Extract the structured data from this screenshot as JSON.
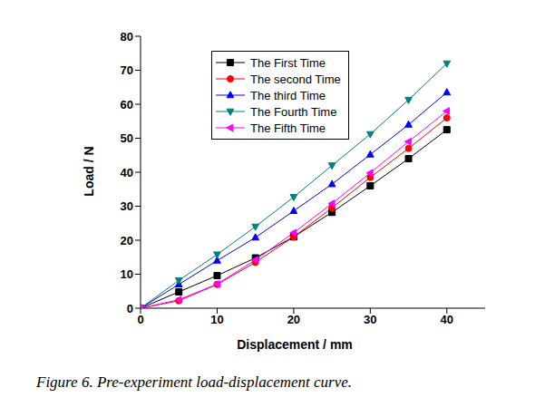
{
  "chart_data": {
    "type": "line",
    "caption": "Figure 6. Pre-experiment load-displacement curve.",
    "x_label": "Displacement / mm",
    "y_label": "Load / N",
    "x": [
      0,
      5,
      10,
      15,
      20,
      25,
      30,
      35,
      40
    ],
    "xlim": [
      0,
      45
    ],
    "xticks": [
      0,
      10,
      20,
      30,
      40
    ],
    "ylim": [
      0,
      80
    ],
    "yticks": [
      0,
      10,
      20,
      30,
      40,
      50,
      60,
      70,
      80
    ],
    "grid": false,
    "legend": "upper left",
    "series": [
      {
        "name": "The First Time",
        "color": "#000000",
        "marker": "square",
        "values": [
          0,
          4.8,
          9.6,
          14.8,
          21,
          28.2,
          36,
          44,
          52.5
        ]
      },
      {
        "name": "The second Time",
        "color": "#ff0000",
        "marker": "circle",
        "values": [
          0,
          2.2,
          7,
          13.5,
          21,
          29.5,
          38.5,
          47,
          56
        ]
      },
      {
        "name": "The third Time",
        "color": "#0000ff",
        "marker": "triangle-up",
        "values": [
          0,
          7,
          14,
          20.8,
          28.6,
          36.5,
          45.2,
          54,
          63.5
        ]
      },
      {
        "name": "The Fourth Time",
        "color": "#008080",
        "marker": "triangle-down",
        "values": [
          0,
          8.2,
          15.8,
          24,
          32.7,
          42,
          51.2,
          61.3,
          72
        ]
      },
      {
        "name": "The Fifth Time",
        "color": "#ff00ff",
        "marker": "triangle-left",
        "values": [
          0,
          2.5,
          7.1,
          14.2,
          22.2,
          30.8,
          39.8,
          49,
          58
        ]
      }
    ]
  }
}
